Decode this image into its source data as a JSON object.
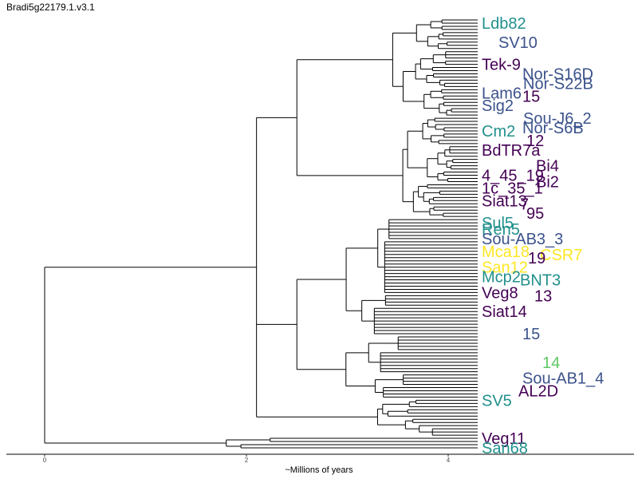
{
  "chart_data": {
    "type": "dendrogram",
    "title": "Bradi5g22179.1.v3.1",
    "xlabel": "~Millions of years",
    "xlim": [
      0,
      5.7
    ],
    "xticks": [
      0,
      2,
      4
    ],
    "tick_labels": [
      "0",
      "2",
      "4"
    ],
    "colors": {
      "purple": "#440154",
      "blue": "#3b528b",
      "teal": "#21908c",
      "green": "#5dc863",
      "yellow": "#fde725",
      "branch": "#000000"
    },
    "visible_tip_labels": [
      {
        "text": "Ldb82",
        "color": "teal"
      },
      {
        "text": "SV10",
        "color": "blue"
      },
      {
        "text": "Tek-9",
        "color": "purple"
      },
      {
        "text": "Nor-S16D",
        "color": "blue"
      },
      {
        "text": "Nor-S22B",
        "color": "blue"
      },
      {
        "text": "Lam6",
        "color": "blue"
      },
      {
        "text": "15",
        "color": "purple"
      },
      {
        "text": "Sig2",
        "color": "blue"
      },
      {
        "text": "Sou-J6_2",
        "color": "blue"
      },
      {
        "text": "Nor-S6B",
        "color": "blue"
      },
      {
        "text": "Cm2",
        "color": "teal"
      },
      {
        "text": "12",
        "color": "purple"
      },
      {
        "text": "BdTR7a",
        "color": "purple"
      },
      {
        "text": "Bi4",
        "color": "purple"
      },
      {
        "text": "4_45_19",
        "color": "purple"
      },
      {
        "text": "Bi2",
        "color": "purple"
      },
      {
        "text": "1c_35_1",
        "color": "purple"
      },
      {
        "text": "Siat13",
        "color": "purple"
      },
      {
        "text": "7",
        "color": "purple"
      },
      {
        "text": "95",
        "color": "purple"
      },
      {
        "text": "Sul5",
        "color": "teal"
      },
      {
        "text": "Ren5",
        "color": "teal"
      },
      {
        "text": "Sou-AB3_3",
        "color": "blue"
      },
      {
        "text": "Mca18",
        "color": "yellow"
      },
      {
        "text": "CSR7",
        "color": "yellow"
      },
      {
        "text": "19",
        "color": "purple"
      },
      {
        "text": "San12",
        "color": "yellow"
      },
      {
        "text": "Mcp2",
        "color": "teal"
      },
      {
        "text": "BNT3",
        "color": "teal"
      },
      {
        "text": "Veg8",
        "color": "purple"
      },
      {
        "text": "13",
        "color": "purple"
      },
      {
        "text": "Siat14",
        "color": "purple"
      },
      {
        "text": "15",
        "color": "blue"
      },
      {
        "text": "14",
        "color": "green"
      },
      {
        "text": "Sou-AB1_4",
        "color": "blue"
      },
      {
        "text": "AL2D",
        "color": "purple"
      },
      {
        "text": "SV5",
        "color": "teal"
      },
      {
        "text": "Veg11",
        "color": "purple"
      },
      {
        "text": "San68",
        "color": "teal"
      }
    ]
  }
}
